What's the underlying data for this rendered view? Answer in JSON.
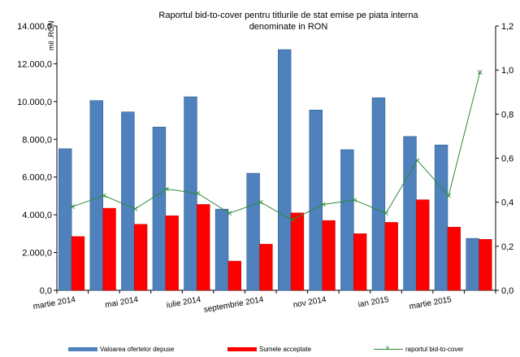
{
  "chart_data": {
    "type": "bar",
    "title_lines": [
      "Raportul bid-to-cover pentru titlurile de stat emise pe piata interna",
      "denominate in RON"
    ],
    "ylabel": "mil .RON",
    "ylim": [
      0,
      14000
    ],
    "y2lim": [
      0,
      1.2
    ],
    "y_ticks": [
      "0,0",
      "2.000,0",
      "4.000,0",
      "6.000,0",
      "8.000,0",
      "10.000,0",
      "12.000,0",
      "14.000,0"
    ],
    "y2_ticks": [
      "0,0",
      "0,2",
      "0,4",
      "0,6",
      "0,8",
      "1,0",
      "1,2"
    ],
    "categories": [
      "martie 2014",
      "",
      "mai 2014",
      "",
      "iulie 2014",
      "",
      "septembrie 2014",
      "",
      "nov 2014",
      "",
      "ian 2015",
      "",
      "martie 2015",
      ""
    ],
    "x_tick_labels": [
      "martie 2014",
      "mai 2014",
      "iulie 2014",
      "septembrie 2014",
      "nov 2014",
      "ian 2015",
      "martie 2015"
    ],
    "series": [
      {
        "name": "Valoarea ofertelor depuse",
        "type": "bar",
        "color": "#4f81bd",
        "values": [
          7500,
          10050,
          9450,
          8650,
          10250,
          4300,
          6200,
          12750,
          9550,
          7450,
          10200,
          8150,
          7700,
          2750
        ]
      },
      {
        "name": "Sumele acceptate",
        "type": "bar",
        "color": "#ff0000",
        "values": [
          2850,
          4350,
          3500,
          3950,
          4550,
          1550,
          2450,
          4100,
          3700,
          3000,
          3600,
          4800,
          3350,
          2700
        ]
      },
      {
        "name": "raportul bid-to-cover",
        "type": "line",
        "axis": "right",
        "color": "#2e8b3a",
        "values": [
          0.38,
          0.43,
          0.37,
          0.46,
          0.44,
          0.35,
          0.4,
          0.32,
          0.39,
          0.41,
          0.35,
          0.59,
          0.43,
          0.99
        ]
      }
    ],
    "legend_position": "bottom",
    "grid": false
  }
}
